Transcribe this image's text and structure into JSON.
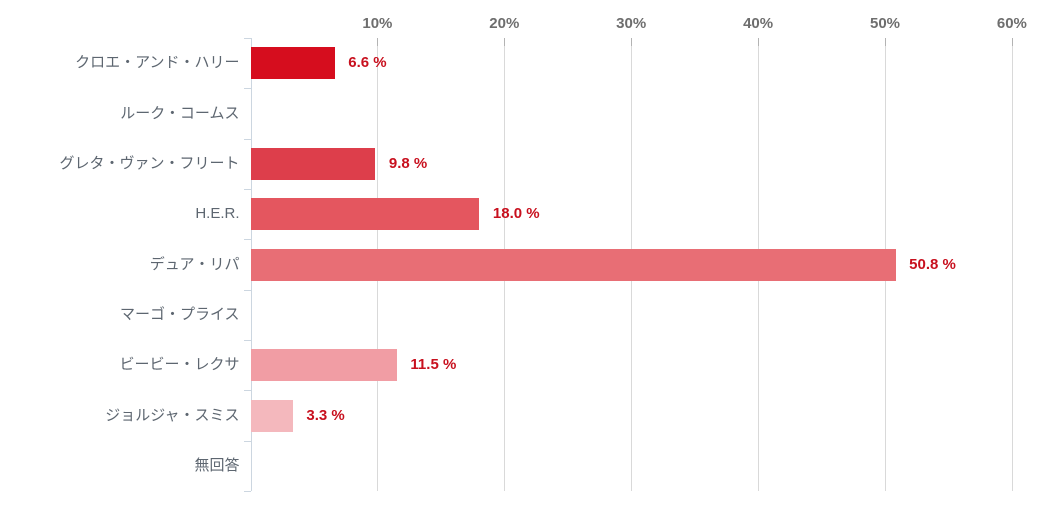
{
  "chart_data": {
    "type": "bar",
    "orientation": "horizontal",
    "title": "",
    "xlabel": "",
    "ylabel": "",
    "xlim": [
      0,
      60
    ],
    "grid": true,
    "axis_position": "top",
    "categories": [
      "クロエ・アンド・ハリー",
      "ルーク・コームス",
      "グレタ・ヴァン・フリート",
      "H.E.R.",
      "デュア・リパ",
      "マーゴ・プライス",
      "ビービー・レクサ",
      "ジョルジャ・スミス",
      "無回答"
    ],
    "values": [
      6.6,
      0,
      9.8,
      18.0,
      50.8,
      0,
      11.5,
      3.3,
      0
    ],
    "value_labels": [
      "6.6 %",
      "",
      "9.8 %",
      "18.0 %",
      "50.8 %",
      "",
      "11.5 %",
      "3.3 %",
      ""
    ],
    "bar_colors": [
      "#d60d1e",
      null,
      "#dd3e4b",
      "#e4565f",
      "#e86e75",
      null,
      "#f19da4",
      "#f4b8bd",
      null
    ],
    "x_ticks": [
      {
        "label": "10%",
        "value": 10
      },
      {
        "label": "20%",
        "value": 20
      },
      {
        "label": "30%",
        "value": 30
      },
      {
        "label": "40%",
        "value": 40
      },
      {
        "label": "50%",
        "value": 50
      },
      {
        "label": "60%",
        "value": 60
      }
    ],
    "colors": {
      "value_label": "#c8101e",
      "x_tick_label": "#6e6e6e",
      "category_label": "#5d6670",
      "gridline": "#d9d9d9",
      "category_axis": "#ccd6e0"
    }
  }
}
